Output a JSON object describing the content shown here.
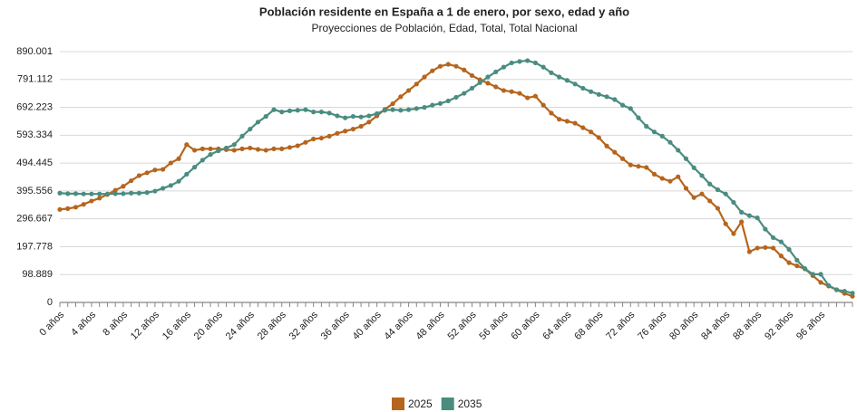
{
  "chart_data": {
    "type": "line",
    "title": "Población residente en España a 1 de enero, por sexo, edad y año",
    "subtitle": "Proyecciones de Población, Edad, Total, Total Nacional",
    "categories": [
      "0 años",
      null,
      null,
      null,
      "4 años",
      null,
      null,
      null,
      "8 años",
      null,
      null,
      null,
      "12 años",
      null,
      null,
      null,
      "16 años",
      null,
      null,
      null,
      "20 años",
      null,
      null,
      null,
      "24 años",
      null,
      null,
      null,
      "28 años",
      null,
      null,
      null,
      "32 años",
      null,
      null,
      null,
      "36 años",
      null,
      null,
      null,
      "40 años",
      null,
      null,
      null,
      "44 años",
      null,
      null,
      null,
      "48 años",
      null,
      null,
      null,
      "52 años",
      null,
      null,
      null,
      "56 años",
      null,
      null,
      null,
      "60 años",
      null,
      null,
      null,
      "64 años",
      null,
      null,
      null,
      "68 años",
      null,
      null,
      null,
      "72 años",
      null,
      null,
      null,
      "76 años",
      null,
      null,
      null,
      "80 años",
      null,
      null,
      null,
      "84 años",
      null,
      null,
      null,
      "88 años",
      null,
      null,
      null,
      "92 años",
      null,
      null,
      null,
      "96 años",
      null,
      null,
      null,
      null
    ],
    "series": [
      {
        "name": "2025",
        "color": "#b5651d",
        "values": [
          330000,
          333000,
          338000,
          348000,
          360000,
          370000,
          383000,
          398000,
          412000,
          432000,
          450000,
          460000,
          470000,
          472000,
          495000,
          510000,
          560000,
          540000,
          545000,
          545000,
          545000,
          542000,
          540000,
          545000,
          548000,
          543000,
          540000,
          545000,
          545000,
          550000,
          556000,
          568000,
          580000,
          583000,
          590000,
          600000,
          608000,
          615000,
          625000,
          640000,
          662000,
          685000,
          705000,
          730000,
          752000,
          775000,
          800000,
          822000,
          838000,
          845000,
          838000,
          825000,
          805000,
          790000,
          778000,
          765000,
          752000,
          748000,
          742000,
          726000,
          732000,
          700000,
          672000,
          650000,
          643000,
          636000,
          620000,
          605000,
          585000,
          555000,
          533000,
          510000,
          488000,
          483000,
          479000,
          455000,
          440000,
          430000,
          446000,
          405000,
          372000,
          385000,
          360000,
          334000,
          279000,
          244000,
          286000,
          180000,
          193000,
          195000,
          193000,
          165000,
          141000,
          130000,
          119000,
          95000,
          71000,
          58000,
          45000,
          32000,
          22000
        ]
      },
      {
        "name": "2035",
        "color": "#4a8c80",
        "values": [
          388000,
          386000,
          386000,
          385000,
          385000,
          385000,
          385000,
          386000,
          386000,
          388000,
          388000,
          390000,
          395000,
          405000,
          415000,
          430000,
          455000,
          480000,
          505000,
          525000,
          538000,
          548000,
          560000,
          590000,
          615000,
          640000,
          660000,
          684000,
          676000,
          680000,
          682000,
          684000,
          676000,
          676000,
          672000,
          662000,
          655000,
          660000,
          658000,
          662000,
          670000,
          682000,
          684000,
          682000,
          684000,
          688000,
          692000,
          700000,
          706000,
          715000,
          728000,
          742000,
          760000,
          780000,
          800000,
          818000,
          835000,
          850000,
          855000,
          858000,
          850000,
          835000,
          815000,
          800000,
          788000,
          775000,
          760000,
          748000,
          738000,
          730000,
          720000,
          700000,
          688000,
          655000,
          625000,
          605000,
          590000,
          568000,
          540000,
          510000,
          478000,
          450000,
          420000,
          400000,
          385000,
          355000,
          320000,
          308000,
          300000,
          260000,
          230000,
          215000,
          188000,
          150000,
          120000,
          100000,
          100000,
          60000,
          45000,
          40000,
          33000
        ]
      }
    ],
    "ylim": [
      0,
      890001
    ],
    "yticks": [
      0,
      {
        "value": 98889,
        "label": "98.889"
      },
      {
        "value": 197778,
        "label": "197.778"
      },
      {
        "value": 296667,
        "label": "296.667"
      },
      {
        "value": 395556,
        "label": "395.556"
      },
      {
        "value": 494445,
        "label": "494.445"
      },
      {
        "value": 593334,
        "label": "593.334"
      },
      {
        "value": 692223,
        "label": "692.223"
      },
      {
        "value": 791112,
        "label": "791.112"
      },
      {
        "value": 890001,
        "label": "890.001"
      }
    ],
    "grid": true,
    "legend": "bottom"
  }
}
